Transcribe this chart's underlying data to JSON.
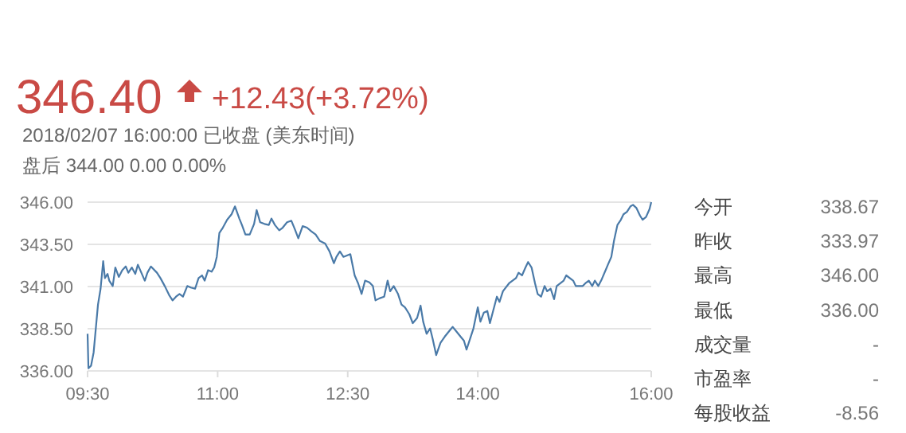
{
  "chart_data": [
    {
      "type": "line",
      "title": "346.40",
      "annotations": [
        "+12.43(+3.72%)",
        "2018/02/07 16:00:00  已收盘 (美东时间)",
        "盘后  344.00  0.00  0.00%"
      ],
      "color": "#4a7aa8",
      "grid": "y",
      "xlim": [
        9.5,
        16
      ],
      "ylim": [
        336,
        346
      ],
      "xticks": [
        {
          "value": 9.5,
          "label": "09:30"
        },
        {
          "value": 11,
          "label": "11:00"
        },
        {
          "value": 12.5,
          "label": "12:30"
        },
        {
          "value": 14,
          "label": "14:00"
        },
        {
          "value": 16,
          "label": "16:00"
        }
      ],
      "yticks": [
        {
          "value": 336,
          "label": "336.00"
        },
        {
          "value": 338.5,
          "label": "338.50"
        },
        {
          "value": 341,
          "label": "341.00"
        },
        {
          "value": 343.5,
          "label": "343.50"
        },
        {
          "value": 346,
          "label": "346.00"
        }
      ],
      "x": [
        9.5,
        9.51,
        9.54,
        9.57,
        9.62,
        9.65,
        9.68,
        9.7,
        9.73,
        9.75,
        9.79,
        9.82,
        9.86,
        9.9,
        9.94,
        9.97,
        10.01,
        10.05,
        10.08,
        10.12,
        10.16,
        10.19,
        10.23,
        10.3,
        10.34,
        10.39,
        10.44,
        10.48,
        10.52,
        10.56,
        10.6,
        10.65,
        10.69,
        10.74,
        10.78,
        10.82,
        10.85,
        10.89,
        10.93,
        10.96,
        10.99,
        11.02,
        11.06,
        11.11,
        11.16,
        11.2,
        11.25,
        11.28,
        11.32,
        11.37,
        11.42,
        11.45,
        11.49,
        11.54,
        11.59,
        11.62,
        11.66,
        11.71,
        11.75,
        11.8,
        11.85,
        11.89,
        11.93,
        11.98,
        12.03,
        12.08,
        12.13,
        12.18,
        12.24,
        12.29,
        12.34,
        12.37,
        12.41,
        12.45,
        12.48,
        12.53,
        12.58,
        12.62,
        12.66,
        12.7,
        12.75,
        12.79,
        12.82,
        12.87,
        12.92,
        12.96,
        12.99,
        13.03,
        13.08,
        13.12,
        13.16,
        13.21,
        13.25,
        13.3,
        13.34,
        13.37,
        13.41,
        13.45,
        13.48,
        13.52,
        13.57,
        13.62,
        13.67,
        13.71,
        13.75,
        13.8,
        13.84,
        13.87,
        13.91,
        13.95,
        14.0,
        14.03,
        14.07,
        14.11,
        14.14,
        14.18,
        14.22,
        14.25,
        14.29,
        14.36,
        14.44,
        14.47,
        14.51,
        14.55,
        14.58,
        14.62,
        14.66,
        14.69,
        14.73,
        14.77,
        14.8,
        14.84,
        14.88,
        14.91,
        14.99,
        15.02,
        15.1,
        15.13,
        15.21,
        15.24,
        15.28,
        15.32,
        15.35,
        15.39,
        15.43,
        15.5,
        15.54,
        15.57,
        15.61,
        15.65,
        15.68,
        15.72,
        15.76,
        15.79,
        15.83,
        15.87,
        15.9,
        15.94,
        15.98,
        16.0
      ],
      "values": [
        338.2,
        336.16,
        336.31,
        337.1,
        339.93,
        340.87,
        342.51,
        341.5,
        341.75,
        341.35,
        341.03,
        342.13,
        341.57,
        341.97,
        342.19,
        341.82,
        342.13,
        341.75,
        342.29,
        341.82,
        341.35,
        341.82,
        342.19,
        341.82,
        341.5,
        341.03,
        340.5,
        340.18,
        340.4,
        340.56,
        340.4,
        341.03,
        340.94,
        340.87,
        341.5,
        341.66,
        341.35,
        341.97,
        341.88,
        342.13,
        342.76,
        344.18,
        344.49,
        344.96,
        345.28,
        345.75,
        345.03,
        344.65,
        344.08,
        344.08,
        344.71,
        345.53,
        344.81,
        344.71,
        344.65,
        345.03,
        344.65,
        344.33,
        344.49,
        344.81,
        344.9,
        344.4,
        343.86,
        344.58,
        344.49,
        344.27,
        344.08,
        343.7,
        343.55,
        343.08,
        342.38,
        342.76,
        343.08,
        342.76,
        342.82,
        342.92,
        341.66,
        341.19,
        340.56,
        341.35,
        341.25,
        341.03,
        340.18,
        340.31,
        340.4,
        341.35,
        340.72,
        341.03,
        340.56,
        339.93,
        339.77,
        339.36,
        338.83,
        339.14,
        339.87,
        338.92,
        338.2,
        338.52,
        337.89,
        336.94,
        337.67,
        338.04,
        338.36,
        338.61,
        338.36,
        338.04,
        337.79,
        337.26,
        337.89,
        338.52,
        339.77,
        338.92,
        339.46,
        339.55,
        338.83,
        339.62,
        340.4,
        340.09,
        340.72,
        341.19,
        341.5,
        341.82,
        341.66,
        342.13,
        342.45,
        342.13,
        341.19,
        340.56,
        340.4,
        341.03,
        340.72,
        340.87,
        340.25,
        341.03,
        341.35,
        341.66,
        341.35,
        341.03,
        341.03,
        341.19,
        341.35,
        341.03,
        341.35,
        341.03,
        341.44,
        342.29,
        342.76,
        343.7,
        344.65,
        344.96,
        345.28,
        345.43,
        345.75,
        345.84,
        345.65,
        345.21,
        344.96,
        345.12,
        345.59,
        346.0
      ]
    },
    {
      "type": "other",
      "annotations": [
        "今开",
        "338.67",
        "昨收",
        "333.97",
        "最高",
        "346.00",
        "最低",
        "336.00",
        "成交量",
        "-",
        "市盈率",
        "-",
        "每股收益",
        "-8.56"
      ]
    }
  ]
}
